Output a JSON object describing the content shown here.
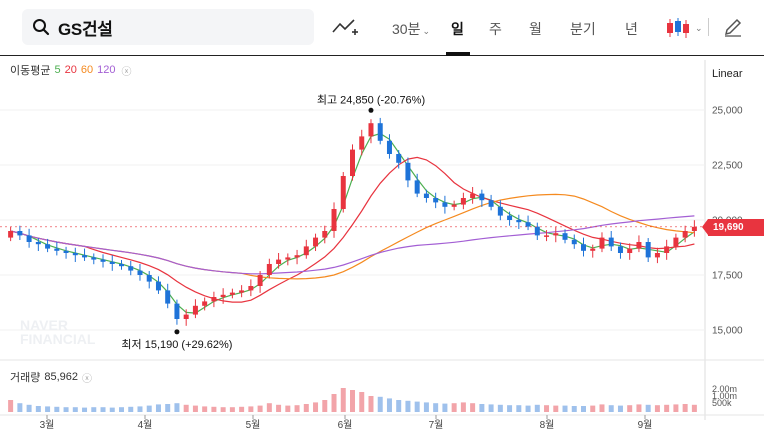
{
  "header": {
    "title": "GS건설",
    "tabs": [
      {
        "label": "30분",
        "dropdown": true
      },
      {
        "label": "일",
        "active": true
      },
      {
        "label": "주"
      },
      {
        "label": "월"
      },
      {
        "label": "분기"
      },
      {
        "label": "년"
      }
    ]
  },
  "indicators": {
    "ma_label": "이동평균",
    "ma_periods": [
      {
        "label": "5",
        "color": "#4caf50"
      },
      {
        "label": "20",
        "color": "#e8343f"
      },
      {
        "label": "60",
        "color": "#f58a1f"
      },
      {
        "label": "120",
        "color": "#a35fd4"
      }
    ],
    "volume_label": "거래량",
    "volume_value": "85,962",
    "scale_mode": "Linear"
  },
  "colors": {
    "up": "#e8343f",
    "down": "#1e73d8",
    "ma5": "#4caf50",
    "ma20": "#e8343f",
    "ma60": "#f58a1f",
    "ma120": "#a35fd4"
  },
  "chart_data": {
    "type": "candlestick",
    "y_ticks": [
      "25,000",
      "22,500",
      "20,000",
      "17,500",
      "15,000"
    ],
    "y_range": [
      14500,
      26000
    ],
    "volume_ticks": [
      "2.00m",
      "1.00m",
      "500k"
    ],
    "x_ticks": [
      "3월",
      "4월",
      "5월",
      "6월",
      "7월",
      "8월",
      "9월"
    ],
    "current_price": 19690,
    "current_price_label": "19,690",
    "high_label": "최고 24,850 (-20.76%)",
    "high_value": 24850,
    "low_label": "최저 15,190 (+29.62%)",
    "low_value": 15190,
    "watermark": [
      "NAVER",
      "FINANCIAL"
    ],
    "close_series": [
      19500,
      19300,
      19000,
      18900,
      18700,
      18600,
      18500,
      18400,
      18300,
      18200,
      18100,
      18000,
      17900,
      17700,
      17500,
      17200,
      16800,
      16200,
      15500,
      15700,
      16100,
      16300,
      16500,
      16600,
      16700,
      16800,
      17000,
      17500,
      18000,
      18200,
      18300,
      18400,
      18800,
      19200,
      19500,
      20500,
      22000,
      23200,
      23800,
      24400,
      23600,
      23000,
      22600,
      21800,
      21200,
      21000,
      20800,
      20600,
      20700,
      21000,
      21200,
      20900,
      20600,
      20200,
      20000,
      19900,
      19700,
      19300,
      19300,
      19400,
      19100,
      18900,
      18600,
      18700,
      19200,
      18800,
      18500,
      18700,
      19000,
      18300,
      18500,
      18800,
      19200,
      19500,
      19690
    ],
    "volume_series": [
      0.3,
      0.22,
      0.18,
      0.15,
      0.14,
      0.13,
      0.12,
      0.12,
      0.11,
      0.12,
      0.12,
      0.11,
      0.12,
      0.13,
      0.14,
      0.16,
      0.19,
      0.2,
      0.22,
      0.18,
      0.16,
      0.14,
      0.13,
      0.12,
      0.12,
      0.13,
      0.14,
      0.16,
      0.22,
      0.18,
      0.16,
      0.17,
      0.2,
      0.24,
      0.3,
      0.45,
      0.6,
      0.55,
      0.5,
      0.4,
      0.38,
      0.34,
      0.3,
      0.28,
      0.26,
      0.24,
      0.22,
      0.21,
      0.22,
      0.24,
      0.22,
      0.2,
      0.19,
      0.18,
      0.17,
      0.17,
      0.16,
      0.18,
      0.17,
      0.16,
      0.16,
      0.15,
      0.15,
      0.16,
      0.19,
      0.17,
      0.16,
      0.17,
      0.19,
      0.18,
      0.17,
      0.18,
      0.19,
      0.2,
      0.18
    ]
  }
}
